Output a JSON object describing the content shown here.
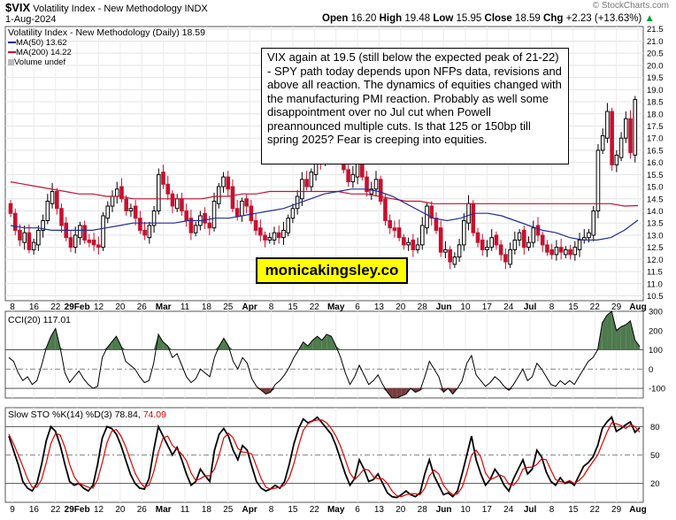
{
  "header": {
    "symbol": "$VIX",
    "name": "Volatility Index - New Methodology",
    "exchange": "INDX",
    "date": "1-Aug-2024",
    "open_label": "Open",
    "open": "16.20",
    "high_label": "High",
    "high": "19.48",
    "low_label": "Low",
    "low": "15.95",
    "close_label": "Close",
    "close": "18.59",
    "chg_label": "Chg",
    "chg": "+2.23 (+13.63%)",
    "chg_arrow": "▲",
    "watermark": "© StockCharts.com"
  },
  "legend": {
    "main": "Volatility Index - New Methodology (Daily) 18.59",
    "ma50": "MA(50) 13.62",
    "ma200": "MA(200) 14.22",
    "volume": "Volume undef",
    "cci": "CCI(20) 117.01",
    "sto_prefix": "Slow STO %K(14) %D(3) 78.84,",
    "sto_d": "74.09"
  },
  "annotation": {
    "text": "VIX again at 19.5 (still below the expected peak of 21-22) - SPY path today depends upon NFPs data, revisions and above all reaction. The dynamics of equities changed with the manufacturing PMI reaction. Probably as well some disappointment over no Jul cut when Powell preannounced multiple cuts. Is that 125 or 150bp till spring 2025? Fear is creeping into equities."
  },
  "brand": {
    "text": "monicakingsley.co"
  },
  "colors": {
    "up": "#000000",
    "down": "#c8102e",
    "ma50": "#1f2c9e",
    "ma200": "#c8102e",
    "cci_fill": "#4e7a4e",
    "cci_neg": "#7a3c3c",
    "sto_k": "#000000",
    "sto_d": "#e00000"
  },
  "chart_data": [
    {
      "type": "candlestick",
      "title": "Volatility Index - New Methodology (Daily)",
      "ylim": [
        10.3,
        21.6
      ],
      "yticks": [
        "21.5",
        "21.0",
        "20.5",
        "20.0",
        "19.5",
        "19.0",
        "18.5",
        "18.0",
        "17.5",
        "17.0",
        "16.5",
        "16.0",
        "15.5",
        "15.0",
        "14.5",
        "14.0",
        "13.5",
        "13.0",
        "12.5",
        "12.0",
        "11.5",
        "11.0",
        "10.5"
      ],
      "x_ticks": [
        "8",
        "16",
        "22",
        "29Feb",
        "12",
        "20",
        "26",
        "Mar",
        "11",
        "18",
        "25",
        "Apr",
        "8",
        "15",
        "22",
        "May",
        "6",
        "13",
        "20",
        "28",
        "Jun",
        "10",
        "17",
        "24",
        "Jul",
        "8",
        "15",
        "22",
        "29",
        "Aug"
      ],
      "x_ticks_bottom": [
        "9",
        "16",
        "22",
        "29Feb",
        "12",
        "20",
        "26",
        "Mar",
        "11",
        "18",
        "25",
        "Apr",
        "8",
        "15",
        "22",
        "May",
        "6",
        "13",
        "20",
        "28",
        "Jun",
        "10",
        "17",
        "24",
        "Jul",
        "8",
        "15",
        "22",
        "29",
        "Aug"
      ],
      "closes": [
        13.9,
        13.2,
        12.8,
        13.1,
        12.4,
        12.7,
        13.2,
        13.6,
        14.4,
        14.8,
        14.1,
        13.4,
        12.9,
        12.5,
        13.0,
        13.4,
        12.8,
        12.7,
        12.6,
        12.5,
        13.8,
        14.2,
        14.6,
        14.9,
        14.5,
        14.0,
        14.1,
        13.7,
        13.2,
        13.0,
        13.4,
        14.0,
        15.5,
        15.1,
        14.7,
        14.2,
        14.5,
        14.0,
        13.6,
        13.1,
        13.4,
        13.8,
        13.5,
        13.3,
        14.4,
        15.0,
        15.4,
        14.9,
        14.1,
        13.8,
        14.4,
        14.2,
        13.6,
        13.2,
        13.0,
        12.8,
        12.9,
        13.1,
        12.9,
        13.2,
        13.7,
        14.1,
        14.6,
        15.3,
        15.0,
        15.6,
        16.2,
        16.0,
        16.6,
        17.2,
        16.9,
        16.4,
        15.7,
        15.2,
        15.5,
        16.0,
        15.4,
        14.8,
        14.9,
        15.3,
        14.4,
        13.6,
        13.3,
        13.2,
        12.9,
        12.6,
        12.7,
        12.4,
        12.6,
        13.4,
        14.2,
        13.7,
        13.2,
        12.3,
        12.4,
        11.9,
        12.1,
        12.6,
        13.6,
        14.3,
        13.1,
        12.7,
        12.4,
        12.5,
        12.9,
        12.6,
        12.2,
        11.9,
        12.4,
        12.8,
        13.1,
        12.5,
        12.7,
        13.3,
        13.0,
        12.6,
        12.3,
        12.2,
        12.5,
        12.3,
        12.4,
        12.2,
        12.5,
        12.8,
        12.9,
        13.1,
        14.0,
        16.5,
        17.1,
        18.1,
        15.9,
        16.3,
        17.0,
        17.8,
        16.4,
        18.59
      ],
      "ma50": [
        13.4,
        13.3,
        13.3,
        13.2,
        13.2,
        13.2,
        13.2,
        13.3,
        13.4,
        13.5,
        13.5,
        13.5,
        13.5,
        13.6,
        13.6,
        13.7,
        13.7,
        13.8,
        13.9,
        14.0,
        14.1,
        14.3,
        14.5,
        14.7,
        14.8,
        14.9,
        14.9,
        14.8,
        14.6,
        14.3,
        14.0,
        13.7,
        13.6,
        13.7,
        13.9,
        13.9,
        13.8,
        13.6,
        13.4,
        13.2,
        13.1,
        12.9,
        12.8,
        12.8,
        12.9,
        13.2,
        13.62
      ],
      "ma200": [
        15.2,
        15.1,
        15.0,
        14.9,
        14.8,
        14.7,
        14.7,
        14.6,
        14.6,
        14.5,
        14.5,
        14.5,
        14.5,
        14.5,
        14.5,
        14.6,
        14.6,
        14.7,
        14.7,
        14.8,
        14.8,
        14.8,
        14.8,
        14.8,
        14.8,
        14.7,
        14.7,
        14.6,
        14.5,
        14.4,
        14.4,
        14.3,
        14.3,
        14.3,
        14.3,
        14.3,
        14.3,
        14.3,
        14.3,
        14.3,
        14.3,
        14.3,
        14.3,
        14.3,
        14.3,
        14.2,
        14.22
      ]
    },
    {
      "type": "line",
      "title": "CCI(20)",
      "ylim": [
        -150,
        300
      ],
      "yticks": [
        "300",
        "200",
        "100",
        "0",
        "-100"
      ],
      "values": [
        60,
        40,
        -20,
        -60,
        -40,
        -80,
        -60,
        20,
        110,
        170,
        210,
        110,
        -20,
        -70,
        -40,
        -10,
        -50,
        -80,
        -100,
        -90,
        60,
        110,
        140,
        170,
        120,
        40,
        20,
        0,
        -40,
        -70,
        -60,
        30,
        180,
        140,
        120,
        60,
        80,
        20,
        -40,
        -70,
        -50,
        0,
        -20,
        -40,
        60,
        120,
        160,
        120,
        40,
        0,
        60,
        30,
        -50,
        -90,
        -110,
        -130,
        -120,
        -80,
        -60,
        -30,
        10,
        60,
        100,
        140,
        120,
        150,
        170,
        150,
        180,
        170,
        120,
        60,
        -20,
        -80,
        -40,
        20,
        -30,
        -80,
        -60,
        -30,
        -80,
        -120,
        -150,
        -150,
        -140,
        -130,
        -100,
        -120,
        -110,
        -40,
        40,
        0,
        -40,
        -120,
        -100,
        -130,
        -100,
        -60,
        30,
        70,
        -30,
        -60,
        -90,
        -70,
        -40,
        -60,
        -90,
        -110,
        -80,
        -40,
        0,
        -60,
        -40,
        30,
        0,
        -40,
        -80,
        -90,
        -60,
        -80,
        -60,
        -80,
        -40,
        0,
        40,
        60,
        100,
        240,
        280,
        300,
        200,
        220,
        230,
        250,
        150,
        117.01
      ]
    },
    {
      "type": "line",
      "title": "Slow STO %K(14) %D(3)",
      "ylim": [
        0,
        100
      ],
      "yticks": [
        "80",
        "50",
        "20"
      ],
      "series": [
        {
          "name": "%K",
          "values": [
            70,
            55,
            40,
            22,
            15,
            12,
            20,
            40,
            65,
            80,
            75,
            60,
            40,
            22,
            18,
            20,
            15,
            12,
            18,
            40,
            68,
            80,
            78,
            72,
            60,
            45,
            30,
            20,
            15,
            14,
            25,
            55,
            80,
            70,
            60,
            50,
            58,
            45,
            30,
            18,
            22,
            35,
            28,
            22,
            55,
            72,
            78,
            70,
            55,
            45,
            60,
            55,
            38,
            22,
            15,
            12,
            14,
            18,
            15,
            22,
            40,
            62,
            78,
            88,
            84,
            86,
            90,
            84,
            78,
            72,
            60,
            45,
            30,
            18,
            25,
            45,
            35,
            22,
            24,
            30,
            20,
            10,
            6,
            5,
            8,
            12,
            8,
            6,
            10,
            30,
            45,
            28,
            18,
            8,
            10,
            6,
            12,
            30,
            50,
            70,
            45,
            30,
            18,
            24,
            35,
            28,
            18,
            12,
            25,
            35,
            45,
            30,
            35,
            55,
            48,
            32,
            22,
            18,
            26,
            20,
            22,
            18,
            28,
            38,
            42,
            48,
            60,
            78,
            85,
            90,
            75,
            78,
            82,
            85,
            74,
            78.84
          ]
        },
        {
          "name": "%D",
          "values": [
            72,
            62,
            50,
            38,
            25,
            16,
            16,
            24,
            42,
            62,
            73,
            71,
            58,
            40,
            27,
            20,
            18,
            16,
            15,
            24,
            42,
            63,
            75,
            77,
            70,
            59,
            45,
            31,
            22,
            16,
            18,
            32,
            53,
            68,
            70,
            60,
            56,
            51,
            44,
            31,
            23,
            25,
            28,
            28,
            35,
            50,
            68,
            73,
            68,
            57,
            53,
            53,
            51,
            38,
            25,
            16,
            14,
            15,
            16,
            18,
            26,
            41,
            60,
            76,
            83,
            86,
            87,
            87,
            84,
            78,
            70,
            59,
            45,
            31,
            24,
            29,
            35,
            34,
            27,
            25,
            25,
            20,
            12,
            7,
            6,
            8,
            9,
            9,
            8,
            15,
            28,
            34,
            30,
            18,
            12,
            8,
            9,
            16,
            31,
            50,
            55,
            48,
            31,
            24,
            26,
            29,
            27,
            19,
            18,
            24,
            35,
            37,
            37,
            40,
            46,
            45,
            34,
            24,
            22,
            21,
            23,
            20,
            23,
            28,
            36,
            43,
            50,
            62,
            74,
            84,
            83,
            81,
            78,
            82,
            80,
            74.09
          ]
        }
      ]
    }
  ]
}
